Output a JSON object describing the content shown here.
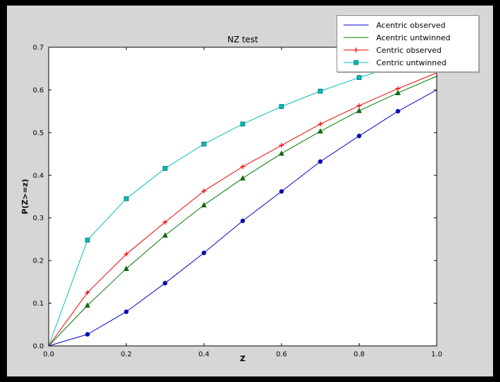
{
  "window": {
    "background": "#000000",
    "figure_background": "#d6d6d6",
    "plot_background": "#ffffff"
  },
  "chart_data": {
    "type": "line",
    "title": "NZ test",
    "xlabel": "Z",
    "ylabel": "P(Z>=z)",
    "xlim": [
      0.0,
      1.0
    ],
    "ylim": [
      0.0,
      0.7
    ],
    "xticks": [
      0.0,
      0.2,
      0.4,
      0.6,
      0.8,
      1.0
    ],
    "yticks": [
      0.0,
      0.1,
      0.2,
      0.3,
      0.4,
      0.5,
      0.6,
      0.7
    ],
    "grid": false,
    "legend_position": "upper right",
    "x": [
      0.0,
      0.1,
      0.2,
      0.3,
      0.4,
      0.5,
      0.6,
      0.7,
      0.8,
      0.9,
      1.0
    ],
    "series": [
      {
        "name": "Acentric observed",
        "color": "#0000cc",
        "marker": "circle",
        "legend_marker": false,
        "values": [
          0.0,
          0.027,
          0.08,
          0.147,
          0.218,
          0.293,
          0.362,
          0.432,
          0.492,
          0.55,
          0.6
        ]
      },
      {
        "name": "Acentric untwinned",
        "color": "#007700",
        "marker": "triangle",
        "legend_marker": false,
        "values": [
          0.0,
          0.095,
          0.181,
          0.259,
          0.33,
          0.393,
          0.451,
          0.503,
          0.551,
          0.593,
          0.632
        ]
      },
      {
        "name": "Centric observed",
        "color": "#ee0000",
        "marker": "plus",
        "legend_marker": true,
        "values": [
          0.0,
          0.125,
          0.215,
          0.29,
          0.363,
          0.42,
          0.47,
          0.52,
          0.563,
          0.603,
          0.64
        ]
      },
      {
        "name": "Centric untwinned",
        "color": "#00bcbc",
        "marker": "square",
        "legend_marker": true,
        "values": [
          0.0,
          0.248,
          0.345,
          0.416,
          0.473,
          0.52,
          0.561,
          0.597,
          0.629,
          0.657,
          0.683
        ]
      }
    ]
  }
}
